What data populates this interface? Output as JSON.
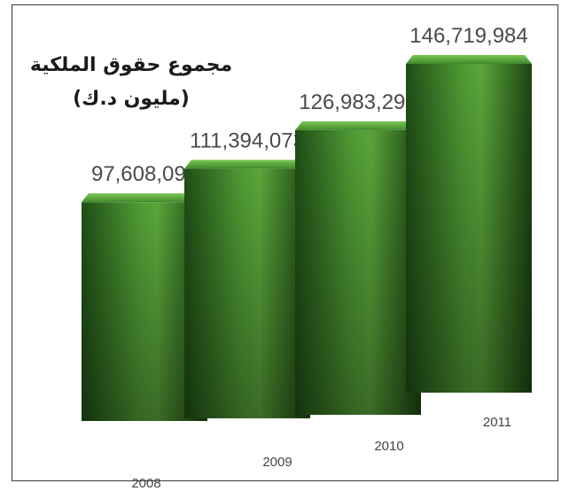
{
  "chart_data": {
    "type": "bar",
    "title": "مجموع حقوق الملكية",
    "subtitle": "(مليون د.ك)",
    "categories": [
      "2008",
      "2009",
      "2010",
      "2011"
    ],
    "values": [
      97608097,
      111394073,
      126983296,
      146719984
    ],
    "value_labels": [
      "97,608,097",
      "111,394,073",
      "126,983,296",
      "146,719,984"
    ],
    "bar_color": "#3f8a2c",
    "grid": false,
    "legend": "none"
  }
}
